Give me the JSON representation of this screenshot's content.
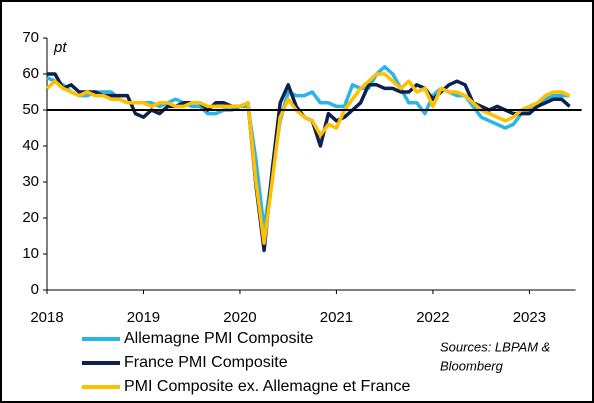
{
  "chart_data": {
    "type": "line",
    "ylabel": "pt",
    "categories": [
      "2018",
      null,
      null,
      null,
      null,
      null,
      null,
      null,
      null,
      null,
      null,
      null,
      "2019",
      null,
      null,
      null,
      null,
      null,
      null,
      null,
      null,
      null,
      null,
      null,
      "2020",
      null,
      null,
      null,
      null,
      null,
      null,
      null,
      null,
      null,
      null,
      null,
      "2021",
      null,
      null,
      null,
      null,
      null,
      null,
      null,
      null,
      null,
      null,
      null,
      "2022",
      null,
      null,
      null,
      null,
      null,
      null,
      null,
      null,
      null,
      null,
      null,
      "2023",
      null,
      null,
      null,
      null,
      null
    ],
    "series": [
      {
        "name": "Allemagne PMI Composite",
        "color": "#29b5e8",
        "values": [
          59,
          58,
          57,
          55,
          54,
          54,
          55,
          55,
          55,
          53,
          52,
          52,
          52,
          52,
          51,
          52,
          53,
          52,
          51,
          51,
          49,
          49,
          50,
          50,
          51,
          51,
          36,
          17,
          32,
          47,
          55,
          54,
          54,
          55,
          52,
          52,
          51,
          51,
          57,
          56,
          56,
          60,
          62,
          60,
          56,
          52,
          52,
          49,
          54,
          56,
          55,
          54,
          54,
          51,
          48,
          47,
          46,
          45,
          46,
          49,
          50,
          51,
          53,
          54,
          54,
          54
        ]
      },
      {
        "name": "France PMI Composite",
        "color": "#0d2150",
        "values": [
          60,
          60,
          56,
          57,
          55,
          55,
          55,
          54,
          54,
          54,
          54,
          49,
          48,
          50,
          49,
          51,
          51,
          52,
          52,
          52,
          50,
          52,
          52,
          51,
          51,
          52,
          29,
          11,
          33,
          52,
          57,
          51,
          48,
          47,
          40,
          49,
          47,
          48,
          50,
          52,
          57,
          57,
          56,
          56,
          55,
          55,
          57,
          56,
          53,
          55,
          57,
          58,
          57,
          52,
          51,
          50,
          51,
          50,
          49,
          49,
          49,
          51,
          52,
          53,
          53,
          51
        ]
      },
      {
        "name": "PMI Composite ex. Allemagne et France",
        "color": "#ffc000",
        "values": [
          56,
          58,
          56,
          55,
          54,
          55,
          54,
          54,
          53,
          53,
          52,
          52,
          52,
          51,
          52,
          52,
          51,
          51,
          52,
          52,
          51,
          51,
          51,
          51,
          51,
          52,
          30,
          13,
          30,
          48,
          53,
          50,
          48,
          47,
          43,
          46,
          45,
          50,
          53,
          56,
          58,
          60,
          60,
          58,
          56,
          58,
          55,
          56,
          51,
          56,
          55,
          55,
          54,
          52,
          50,
          49,
          48,
          47,
          48,
          50,
          51,
          52,
          54,
          55,
          55,
          54
        ]
      }
    ],
    "ylim": [
      0,
      70
    ],
    "yticks": [
      0,
      10,
      20,
      30,
      40,
      50,
      60,
      70
    ],
    "reference_line": 50,
    "annotations": [
      "Sources: LBPAM &",
      "Bloomberg"
    ]
  }
}
